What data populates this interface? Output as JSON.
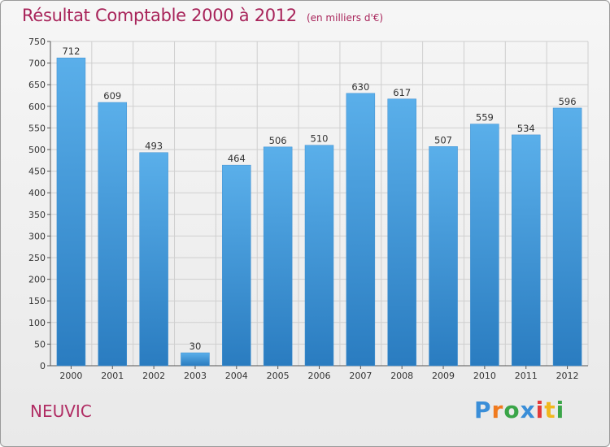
{
  "title": "Résultat Comptable 2000 à 2012",
  "subtitle": "(en milliers d'€)",
  "commune": "NEUVIC",
  "logo": {
    "letters": [
      "P",
      "r",
      "o",
      "x",
      "i",
      "t",
      "i"
    ],
    "colors": [
      "#3a8ed8",
      "#f07a1e",
      "#3aa548",
      "#3a8ed8",
      "#e23a3a",
      "#f0b81e",
      "#3aa548"
    ]
  },
  "colors": {
    "bar_top": "#5aafea",
    "bar_bottom": "#2a7cc0",
    "title": "#a8245a",
    "grid": "#cfcfcf"
  },
  "chart_data": {
    "type": "bar",
    "title": "Résultat Comptable 2000 à 2012",
    "subtitle": "(en milliers d'€)",
    "categories": [
      "2000",
      "2001",
      "2002",
      "2003",
      "2004",
      "2005",
      "2006",
      "2007",
      "2008",
      "2009",
      "2010",
      "2011",
      "2012"
    ],
    "values": [
      712,
      609,
      493,
      30,
      464,
      506,
      510,
      630,
      617,
      507,
      559,
      534,
      596
    ],
    "ylim": [
      0,
      750
    ],
    "yticks": [
      0,
      50,
      100,
      150,
      200,
      250,
      300,
      350,
      400,
      450,
      500,
      550,
      600,
      650,
      700,
      750
    ],
    "grid": true,
    "xlabel": "",
    "ylabel": ""
  }
}
